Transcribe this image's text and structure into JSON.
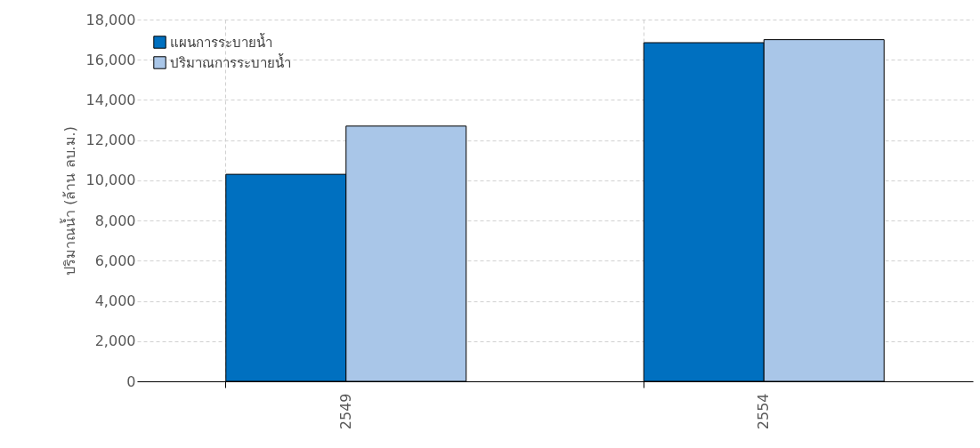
{
  "chart_data": {
    "type": "bar",
    "ylabel": "ปริมาณน้ำ (ล้าน ลบ.ม.)",
    "categories": [
      "2549",
      "2554"
    ],
    "series": [
      {
        "name": "แผนการระบายน้ำ",
        "color": "#0070c0",
        "values": [
          10300,
          16850
        ]
      },
      {
        "name": "ปริมาณการระบายน้ำ",
        "color": "#a9c6e8",
        "values": [
          12700,
          17000
        ]
      }
    ],
    "ylim": [
      0,
      18000
    ],
    "yticks": [
      0,
      {
        "value": 2000,
        "label": "2,000"
      },
      {
        "value": 4000,
        "label": "4,000"
      },
      {
        "value": 6000,
        "label": "6,000"
      },
      {
        "value": 8000,
        "label": "8,000"
      },
      {
        "value": 10000,
        "label": "10,000"
      },
      {
        "value": 12000,
        "label": "12,000"
      },
      {
        "value": 14000,
        "label": "14,000"
      },
      {
        "value": 16000,
        "label": "16,000"
      },
      {
        "value": 18000,
        "label": "18,000"
      }
    ],
    "grid": true,
    "legend": "top left"
  }
}
